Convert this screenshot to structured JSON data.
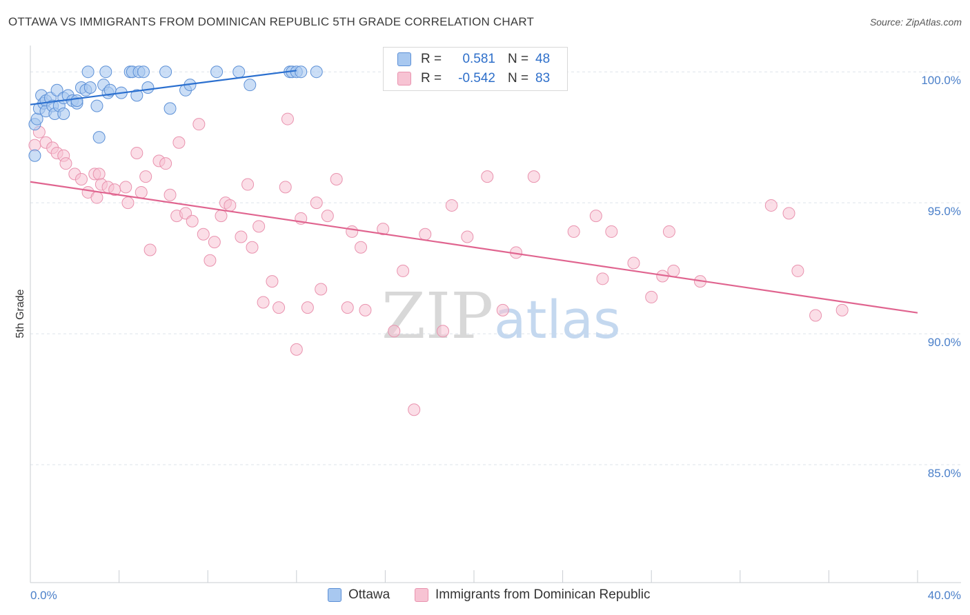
{
  "title": "OTTAWA VS IMMIGRANTS FROM DOMINICAN REPUBLIC 5TH GRADE CORRELATION CHART",
  "source": "Source: ZipAtlas.com",
  "watermark": {
    "zip": "ZIP",
    "atlas": "atlas"
  },
  "legend": {
    "ottawa": {
      "r_label": "R =",
      "r_value": "0.581",
      "n_label": "N =",
      "n_value": "48"
    },
    "dominican": {
      "r_label": "R =",
      "r_value": "-0.542",
      "n_label": "N =",
      "n_value": "83"
    }
  },
  "bottom_legend": {
    "ottawa": "Ottawa",
    "dominican": "Immigrants from Dominican Republic"
  },
  "colors": {
    "ottawa_fill": "#a8c8f0",
    "ottawa_stroke": "#5b8fd6",
    "ottawa_line": "#2a6fcf",
    "dominican_fill": "#f7c3d3",
    "dominican_stroke": "#e992ae",
    "dominican_line": "#e0648f",
    "tick_text": "#4a7fc9",
    "grid": "#dde3ea"
  },
  "chart_data": {
    "type": "scatter",
    "title": "OTTAWA VS IMMIGRANTS FROM DOMINICAN REPUBLIC 5TH GRADE CORRELATION CHART",
    "xlabel": "",
    "ylabel": "5th Grade",
    "xlim": [
      0,
      40
    ],
    "ylim": [
      80.5,
      100.9
    ],
    "x_tick_labels": [
      {
        "value": 0,
        "label": "0.0%"
      },
      {
        "value": 40,
        "label": "40.0%"
      }
    ],
    "y_tick_labels": [
      {
        "value": 100,
        "label": "100.0%"
      },
      {
        "value": 95,
        "label": "95.0%"
      },
      {
        "value": 90,
        "label": "90.0%"
      },
      {
        "value": 85,
        "label": "85.0%"
      }
    ],
    "series": [
      {
        "name": "Ottawa",
        "r": 0.581,
        "n": 48,
        "trend": [
          [
            0.0,
            98.75
          ],
          [
            12.0,
            100.05
          ]
        ],
        "points": [
          [
            0.2,
            96.8
          ],
          [
            0.2,
            98.0
          ],
          [
            0.3,
            98.2
          ],
          [
            0.4,
            98.6
          ],
          [
            0.5,
            99.1
          ],
          [
            0.6,
            98.8
          ],
          [
            0.7,
            98.9
          ],
          [
            0.7,
            98.5
          ],
          [
            0.9,
            99.0
          ],
          [
            1.0,
            98.7
          ],
          [
            1.1,
            98.4
          ],
          [
            1.2,
            99.3
          ],
          [
            1.3,
            98.7
          ],
          [
            1.5,
            99.0
          ],
          [
            1.5,
            98.4
          ],
          [
            1.7,
            99.1
          ],
          [
            1.9,
            98.9
          ],
          [
            2.1,
            98.8
          ],
          [
            2.1,
            98.9
          ],
          [
            2.3,
            99.4
          ],
          [
            2.5,
            99.3
          ],
          [
            2.6,
            100.0
          ],
          [
            2.7,
            99.4
          ],
          [
            3.0,
            98.7
          ],
          [
            3.1,
            97.5
          ],
          [
            3.3,
            99.5
          ],
          [
            3.4,
            100.0
          ],
          [
            3.5,
            99.2
          ],
          [
            3.6,
            99.3
          ],
          [
            4.1,
            99.2
          ],
          [
            4.5,
            100.0
          ],
          [
            4.6,
            100.0
          ],
          [
            4.8,
            99.1
          ],
          [
            4.9,
            100.0
          ],
          [
            5.1,
            100.0
          ],
          [
            5.3,
            99.4
          ],
          [
            6.1,
            100.0
          ],
          [
            6.3,
            98.6
          ],
          [
            7.0,
            99.3
          ],
          [
            7.2,
            99.5
          ],
          [
            8.4,
            100.0
          ],
          [
            9.4,
            100.0
          ],
          [
            9.9,
            99.5
          ],
          [
            11.7,
            100.0
          ],
          [
            11.8,
            100.0
          ],
          [
            12.0,
            100.0
          ],
          [
            12.2,
            100.0
          ],
          [
            12.9,
            100.0
          ]
        ]
      },
      {
        "name": "Immigrants from Dominican Republic",
        "r": -0.542,
        "n": 83,
        "trend": [
          [
            0.0,
            95.8
          ],
          [
            40.0,
            90.8
          ]
        ],
        "points": [
          [
            0.2,
            97.2
          ],
          [
            0.4,
            97.7
          ],
          [
            0.7,
            97.3
          ],
          [
            1.0,
            97.1
          ],
          [
            1.2,
            96.9
          ],
          [
            1.5,
            96.8
          ],
          [
            1.6,
            96.5
          ],
          [
            2.0,
            96.1
          ],
          [
            2.3,
            95.9
          ],
          [
            2.6,
            95.4
          ],
          [
            2.9,
            96.1
          ],
          [
            3.0,
            95.2
          ],
          [
            3.1,
            96.1
          ],
          [
            3.2,
            95.7
          ],
          [
            3.5,
            95.6
          ],
          [
            3.8,
            95.5
          ],
          [
            4.3,
            95.6
          ],
          [
            4.4,
            95.0
          ],
          [
            4.8,
            96.9
          ],
          [
            5.0,
            95.4
          ],
          [
            5.2,
            96.0
          ],
          [
            5.4,
            93.2
          ],
          [
            5.8,
            96.6
          ],
          [
            6.1,
            96.5
          ],
          [
            6.3,
            95.3
          ],
          [
            6.6,
            94.5
          ],
          [
            6.7,
            97.3
          ],
          [
            7.0,
            94.6
          ],
          [
            7.3,
            94.3
          ],
          [
            7.6,
            98.0
          ],
          [
            7.8,
            93.8
          ],
          [
            8.1,
            92.8
          ],
          [
            8.3,
            93.5
          ],
          [
            8.6,
            94.5
          ],
          [
            8.8,
            95.0
          ],
          [
            9.0,
            94.9
          ],
          [
            9.5,
            93.7
          ],
          [
            9.8,
            95.7
          ],
          [
            10.0,
            93.3
          ],
          [
            10.3,
            94.1
          ],
          [
            10.5,
            91.2
          ],
          [
            10.9,
            92.0
          ],
          [
            11.2,
            91.0
          ],
          [
            11.5,
            95.6
          ],
          [
            11.6,
            98.2
          ],
          [
            12.0,
            89.4
          ],
          [
            12.2,
            94.4
          ],
          [
            12.5,
            91.0
          ],
          [
            12.9,
            95.0
          ],
          [
            13.1,
            91.7
          ],
          [
            13.4,
            94.5
          ],
          [
            13.8,
            95.9
          ],
          [
            14.3,
            91.0
          ],
          [
            14.5,
            93.9
          ],
          [
            14.9,
            93.3
          ],
          [
            15.1,
            90.9
          ],
          [
            15.9,
            94.0
          ],
          [
            16.4,
            90.1
          ],
          [
            16.8,
            92.4
          ],
          [
            17.3,
            87.1
          ],
          [
            17.8,
            93.8
          ],
          [
            18.6,
            90.1
          ],
          [
            19.0,
            94.9
          ],
          [
            19.7,
            93.7
          ],
          [
            20.6,
            96.0
          ],
          [
            21.3,
            90.9
          ],
          [
            21.9,
            93.1
          ],
          [
            22.7,
            96.0
          ],
          [
            24.5,
            93.9
          ],
          [
            25.5,
            94.5
          ],
          [
            25.8,
            92.1
          ],
          [
            26.2,
            93.9
          ],
          [
            27.2,
            92.7
          ],
          [
            28.0,
            91.4
          ],
          [
            28.5,
            92.2
          ],
          [
            28.8,
            93.9
          ],
          [
            29.0,
            92.4
          ],
          [
            30.2,
            92.0
          ],
          [
            33.4,
            94.9
          ],
          [
            34.2,
            94.6
          ],
          [
            34.6,
            92.4
          ],
          [
            35.4,
            90.7
          ],
          [
            36.6,
            90.9
          ]
        ]
      }
    ]
  }
}
